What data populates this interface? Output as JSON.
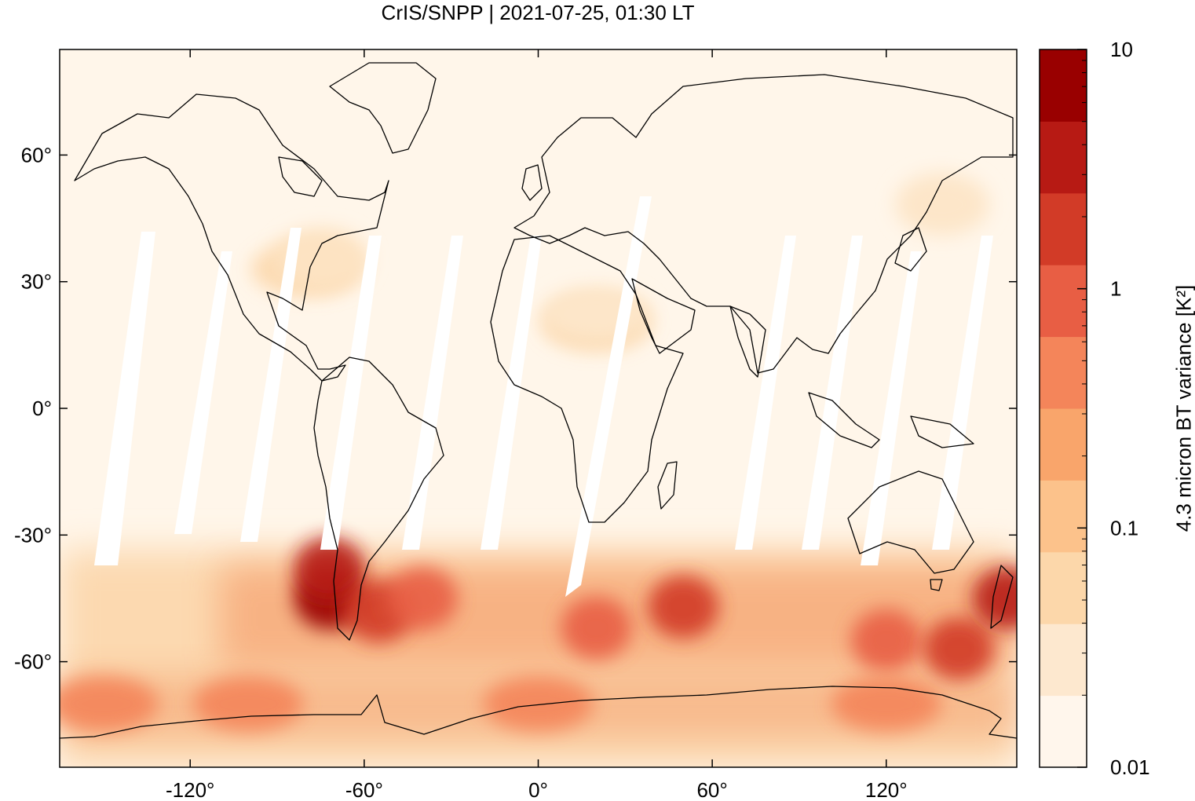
{
  "title": "CrIS/SNPP | 2021-07-25, 01:30 LT",
  "map": {
    "projection": "equirectangular",
    "lon_range": [
      -165,
      165
    ],
    "lat_range": [
      -85,
      85
    ],
    "background": "#fff6ea",
    "coastlines": true,
    "y_ticks": [
      {
        "value": 60,
        "label": "60°"
      },
      {
        "value": 30,
        "label": "30°"
      },
      {
        "value": 0,
        "label": "0°"
      },
      {
        "value": -30,
        "label": "-30°"
      },
      {
        "value": -60,
        "label": "-60°"
      }
    ],
    "x_ticks": [
      {
        "value": -120,
        "label": "-120°"
      },
      {
        "value": -60,
        "label": "-60°"
      },
      {
        "value": 0,
        "label": "0°"
      },
      {
        "value": 60,
        "label": "60°"
      },
      {
        "value": 120,
        "label": "120°"
      }
    ]
  },
  "colorbar": {
    "label": "4.3 micron BT variance [K²]",
    "scale": "log",
    "range": [
      0.01,
      10
    ],
    "tick_labels": [
      {
        "value": 10,
        "label": "10"
      },
      {
        "value": 1,
        "label": "1"
      },
      {
        "value": 0.1,
        "label": "0.1"
      },
      {
        "value": 0.01,
        "label": "0.01"
      }
    ],
    "colors": [
      "#fff6ec",
      "#fde8cf",
      "#fcd7aa",
      "#fcc28b",
      "#f9a56b",
      "#f4855a",
      "#e85e44",
      "#d23b27",
      "#b71a14",
      "#990000"
    ]
  },
  "chart_data": {
    "type": "heatmap",
    "title": "CrIS/SNPP | 2021-07-25, 01:30 LT",
    "xlabel": "",
    "ylabel": "",
    "colorbar_label": "4.3 micron BT variance [K²]",
    "value_range": [
      0.01,
      10
    ],
    "scale": "log",
    "x_ticks": [
      -120,
      -60,
      0,
      60,
      120
    ],
    "y_ticks": [
      -60,
      -30,
      0,
      30,
      60
    ],
    "regions": [
      {
        "lon": -72,
        "lat": -45,
        "value": 8
      },
      {
        "lon": -72,
        "lat": -38,
        "value": 3
      },
      {
        "lon": -55,
        "lat": -48,
        "value": 2
      },
      {
        "lon": -40,
        "lat": -45,
        "value": 1.2
      },
      {
        "lon": 20,
        "lat": -52,
        "value": 1.0
      },
      {
        "lon": 50,
        "lat": -47,
        "value": 1.5
      },
      {
        "lon": 120,
        "lat": -55,
        "value": 1.2
      },
      {
        "lon": 145,
        "lat": -57,
        "value": 2
      },
      {
        "lon": 162,
        "lat": -45,
        "value": 3
      },
      {
        "lon": -150,
        "lat": -70,
        "value": 0.6
      },
      {
        "lon": -100,
        "lat": -70,
        "value": 0.5
      },
      {
        "lon": 0,
        "lat": -70,
        "value": 0.4
      },
      {
        "lon": 120,
        "lat": -70,
        "value": 0.5
      },
      {
        "lon": -80,
        "lat": 33,
        "value": 0.06
      },
      {
        "lon": 20,
        "lat": 20,
        "value": 0.04
      }
    ]
  }
}
